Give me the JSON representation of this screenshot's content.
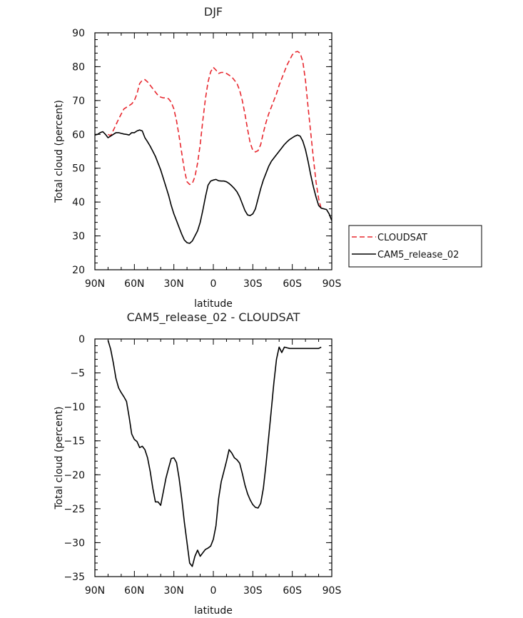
{
  "chart_data": [
    {
      "type": "line",
      "title": "DJF",
      "xlabel": "latitude",
      "ylabel": "Total cloud (percent)",
      "xlim": [
        90,
        -90
      ],
      "ylim": [
        20,
        90
      ],
      "x_ticks": [
        90,
        60,
        30,
        0,
        -30,
        -60,
        -90
      ],
      "x_tick_labels": [
        "90N",
        "60N",
        "30N",
        "0",
        "30S",
        "60S",
        "90S"
      ],
      "y_ticks": [
        20,
        30,
        40,
        50,
        60,
        70,
        80,
        90
      ],
      "y_tick_labels": [
        "20",
        "30",
        "40",
        "50",
        "60",
        "70",
        "80",
        "90"
      ],
      "legend_position": "right",
      "series": [
        {
          "name": "CLOUDSAT",
          "color": "#e8282f",
          "dash": "dashed",
          "x": [
            80,
            78,
            75,
            72,
            70,
            68,
            66,
            64,
            62,
            60,
            58,
            56,
            54,
            52,
            50,
            48,
            46,
            44,
            42,
            40,
            38,
            36,
            34,
            32,
            30,
            28,
            26,
            24,
            22,
            20,
            18,
            16,
            14,
            12,
            10,
            8,
            6,
            4,
            2,
            0,
            -2,
            -4,
            -6,
            -8,
            -10,
            -12,
            -14,
            -16,
            -18,
            -20,
            -22,
            -24,
            -26,
            -28,
            -30,
            -32,
            -34,
            -36,
            -38,
            -40,
            -42,
            -44,
            -46,
            -48,
            -50,
            -52,
            -54,
            -56,
            -58,
            -60,
            -62,
            -64,
            -66,
            -68,
            -70,
            -72,
            -74,
            -76,
            -78,
            -80,
            -82
          ],
          "y": [
            60.0,
            59.6,
            62.0,
            64.5,
            66.0,
            67.5,
            68.0,
            68.5,
            69.0,
            70.0,
            72.0,
            75.0,
            76.0,
            76.2,
            75.5,
            74.5,
            73.5,
            72.5,
            71.5,
            71.0,
            70.8,
            70.8,
            70.5,
            69.5,
            67.5,
            64.0,
            59.5,
            54.5,
            49.5,
            46.0,
            45.2,
            45.5,
            47.5,
            51.5,
            57.0,
            64.0,
            70.5,
            75.5,
            78.5,
            79.8,
            79.0,
            78.0,
            78.3,
            78.3,
            78.0,
            77.5,
            77.0,
            76.0,
            75.0,
            73.0,
            70.0,
            66.0,
            61.5,
            57.5,
            55.3,
            54.8,
            55.2,
            57.0,
            60.5,
            63.5,
            66.0,
            68.0,
            70.0,
            72.0,
            74.5,
            76.5,
            78.5,
            80.5,
            82.0,
            83.5,
            84.3,
            84.5,
            84.0,
            81.5,
            76.0,
            68.0,
            60.5,
            53.0,
            46.0,
            41.0,
            38.0
          ]
        },
        {
          "name": "CAM5_release_02",
          "color": "#000000",
          "dash": "solid",
          "x": [
            90,
            88,
            86,
            84,
            82,
            80,
            78,
            76,
            74,
            72,
            70,
            68,
            66,
            64,
            62,
            60,
            58,
            56,
            54,
            52,
            50,
            48,
            46,
            44,
            42,
            40,
            38,
            36,
            34,
            32,
            30,
            28,
            26,
            24,
            22,
            20,
            18,
            16,
            14,
            12,
            10,
            8,
            6,
            4,
            2,
            0,
            -2,
            -4,
            -6,
            -8,
            -10,
            -12,
            -14,
            -16,
            -18,
            -20,
            -22,
            -24,
            -26,
            -28,
            -30,
            -32,
            -34,
            -36,
            -38,
            -40,
            -42,
            -44,
            -46,
            -48,
            -50,
            -52,
            -54,
            -56,
            -58,
            -60,
            -62,
            -64,
            -66,
            -68,
            -70,
            -72,
            -74,
            -76,
            -78,
            -80,
            -82,
            -84,
            -86,
            -88,
            -90
          ],
          "y": [
            59.8,
            60.0,
            60.5,
            60.8,
            60.0,
            59.0,
            59.5,
            60.0,
            60.5,
            60.5,
            60.3,
            60.1,
            60.0,
            59.8,
            60.5,
            60.5,
            61.0,
            61.3,
            61.0,
            59.0,
            57.8,
            56.5,
            55.0,
            53.5,
            51.5,
            49.5,
            47.0,
            44.5,
            42.0,
            39.0,
            36.5,
            34.5,
            32.5,
            30.5,
            28.8,
            28.0,
            27.8,
            28.5,
            30.0,
            31.5,
            34.0,
            37.5,
            41.5,
            45.0,
            46.2,
            46.5,
            46.7,
            46.3,
            46.2,
            46.2,
            46.0,
            45.5,
            44.8,
            44.0,
            43.0,
            41.5,
            39.5,
            37.5,
            36.2,
            36.0,
            36.5,
            38.0,
            41.0,
            44.0,
            46.5,
            48.5,
            50.5,
            52.0,
            53.0,
            54.0,
            55.0,
            56.0,
            57.0,
            57.8,
            58.5,
            59.0,
            59.5,
            59.8,
            59.5,
            58.0,
            55.5,
            52.0,
            48.0,
            44.5,
            41.5,
            39.0,
            38.2,
            38.0,
            37.8,
            36.5,
            34.5
          ]
        }
      ]
    },
    {
      "type": "line",
      "title": "CAM5_release_02 - CLOUDSAT",
      "xlabel": "latitude",
      "ylabel": "Total cloud (percent)",
      "xlim": [
        90,
        -90
      ],
      "ylim": [
        -35,
        0
      ],
      "x_ticks": [
        90,
        60,
        30,
        0,
        -30,
        -60,
        -90
      ],
      "x_tick_labels": [
        "90N",
        "60N",
        "30N",
        "0",
        "30S",
        "60S",
        "90S"
      ],
      "y_ticks": [
        -35,
        -30,
        -25,
        -20,
        -15,
        -10,
        -5,
        0
      ],
      "y_tick_labels": [
        "−35",
        "−30",
        "−25",
        "−20",
        "−15",
        "−10",
        "−5",
        "0"
      ],
      "series": [
        {
          "name": "",
          "color": "#000000",
          "dash": "solid",
          "x": [
            80,
            78,
            76,
            74,
            72,
            70,
            68,
            66,
            64,
            62,
            60,
            58,
            56,
            54,
            52,
            50,
            48,
            46,
            44,
            42,
            40,
            38,
            36,
            34,
            32,
            30,
            28,
            26,
            24,
            22,
            20,
            18,
            16,
            14,
            12,
            10,
            8,
            6,
            4,
            2,
            0,
            -2,
            -4,
            -6,
            -8,
            -10,
            -12,
            -14,
            -16,
            -18,
            -20,
            -22,
            -24,
            -26,
            -28,
            -30,
            -32,
            -34,
            -36,
            -38,
            -40,
            -42,
            -44,
            -46,
            -48,
            -50,
            -52,
            -54,
            -56,
            -58,
            -60,
            -62,
            -64,
            -66,
            -68,
            -70,
            -72,
            -74,
            -76,
            -78,
            -80,
            -82
          ],
          "y": [
            -0.2,
            -1.5,
            -3.5,
            -5.8,
            -7.2,
            -7.9,
            -8.5,
            -9.2,
            -11.5,
            -14.0,
            -14.8,
            -15.1,
            -16.0,
            -15.8,
            -16.3,
            -17.5,
            -19.5,
            -22.0,
            -24.0,
            -24.0,
            -24.5,
            -22.5,
            -20.5,
            -19.0,
            -17.6,
            -17.5,
            -18.2,
            -20.5,
            -23.5,
            -27.0,
            -30.0,
            -33.0,
            -33.5,
            -32.0,
            -31.1,
            -32.0,
            -31.5,
            -31.0,
            -30.8,
            -30.5,
            -29.5,
            -27.5,
            -23.5,
            -21.0,
            -19.5,
            -18.0,
            -16.3,
            -16.8,
            -17.5,
            -17.8,
            -18.3,
            -19.8,
            -21.5,
            -22.8,
            -23.7,
            -24.4,
            -24.8,
            -24.9,
            -24.2,
            -22.0,
            -18.5,
            -14.5,
            -10.5,
            -6.5,
            -3.0,
            -1.2,
            -2.0,
            -1.2,
            -1.3,
            -1.4,
            -1.4,
            -1.4,
            -1.4,
            -1.4,
            -1.4,
            -1.4,
            -1.4,
            -1.4,
            -1.4,
            -1.4,
            -1.4,
            -1.2
          ]
        }
      ]
    }
  ]
}
